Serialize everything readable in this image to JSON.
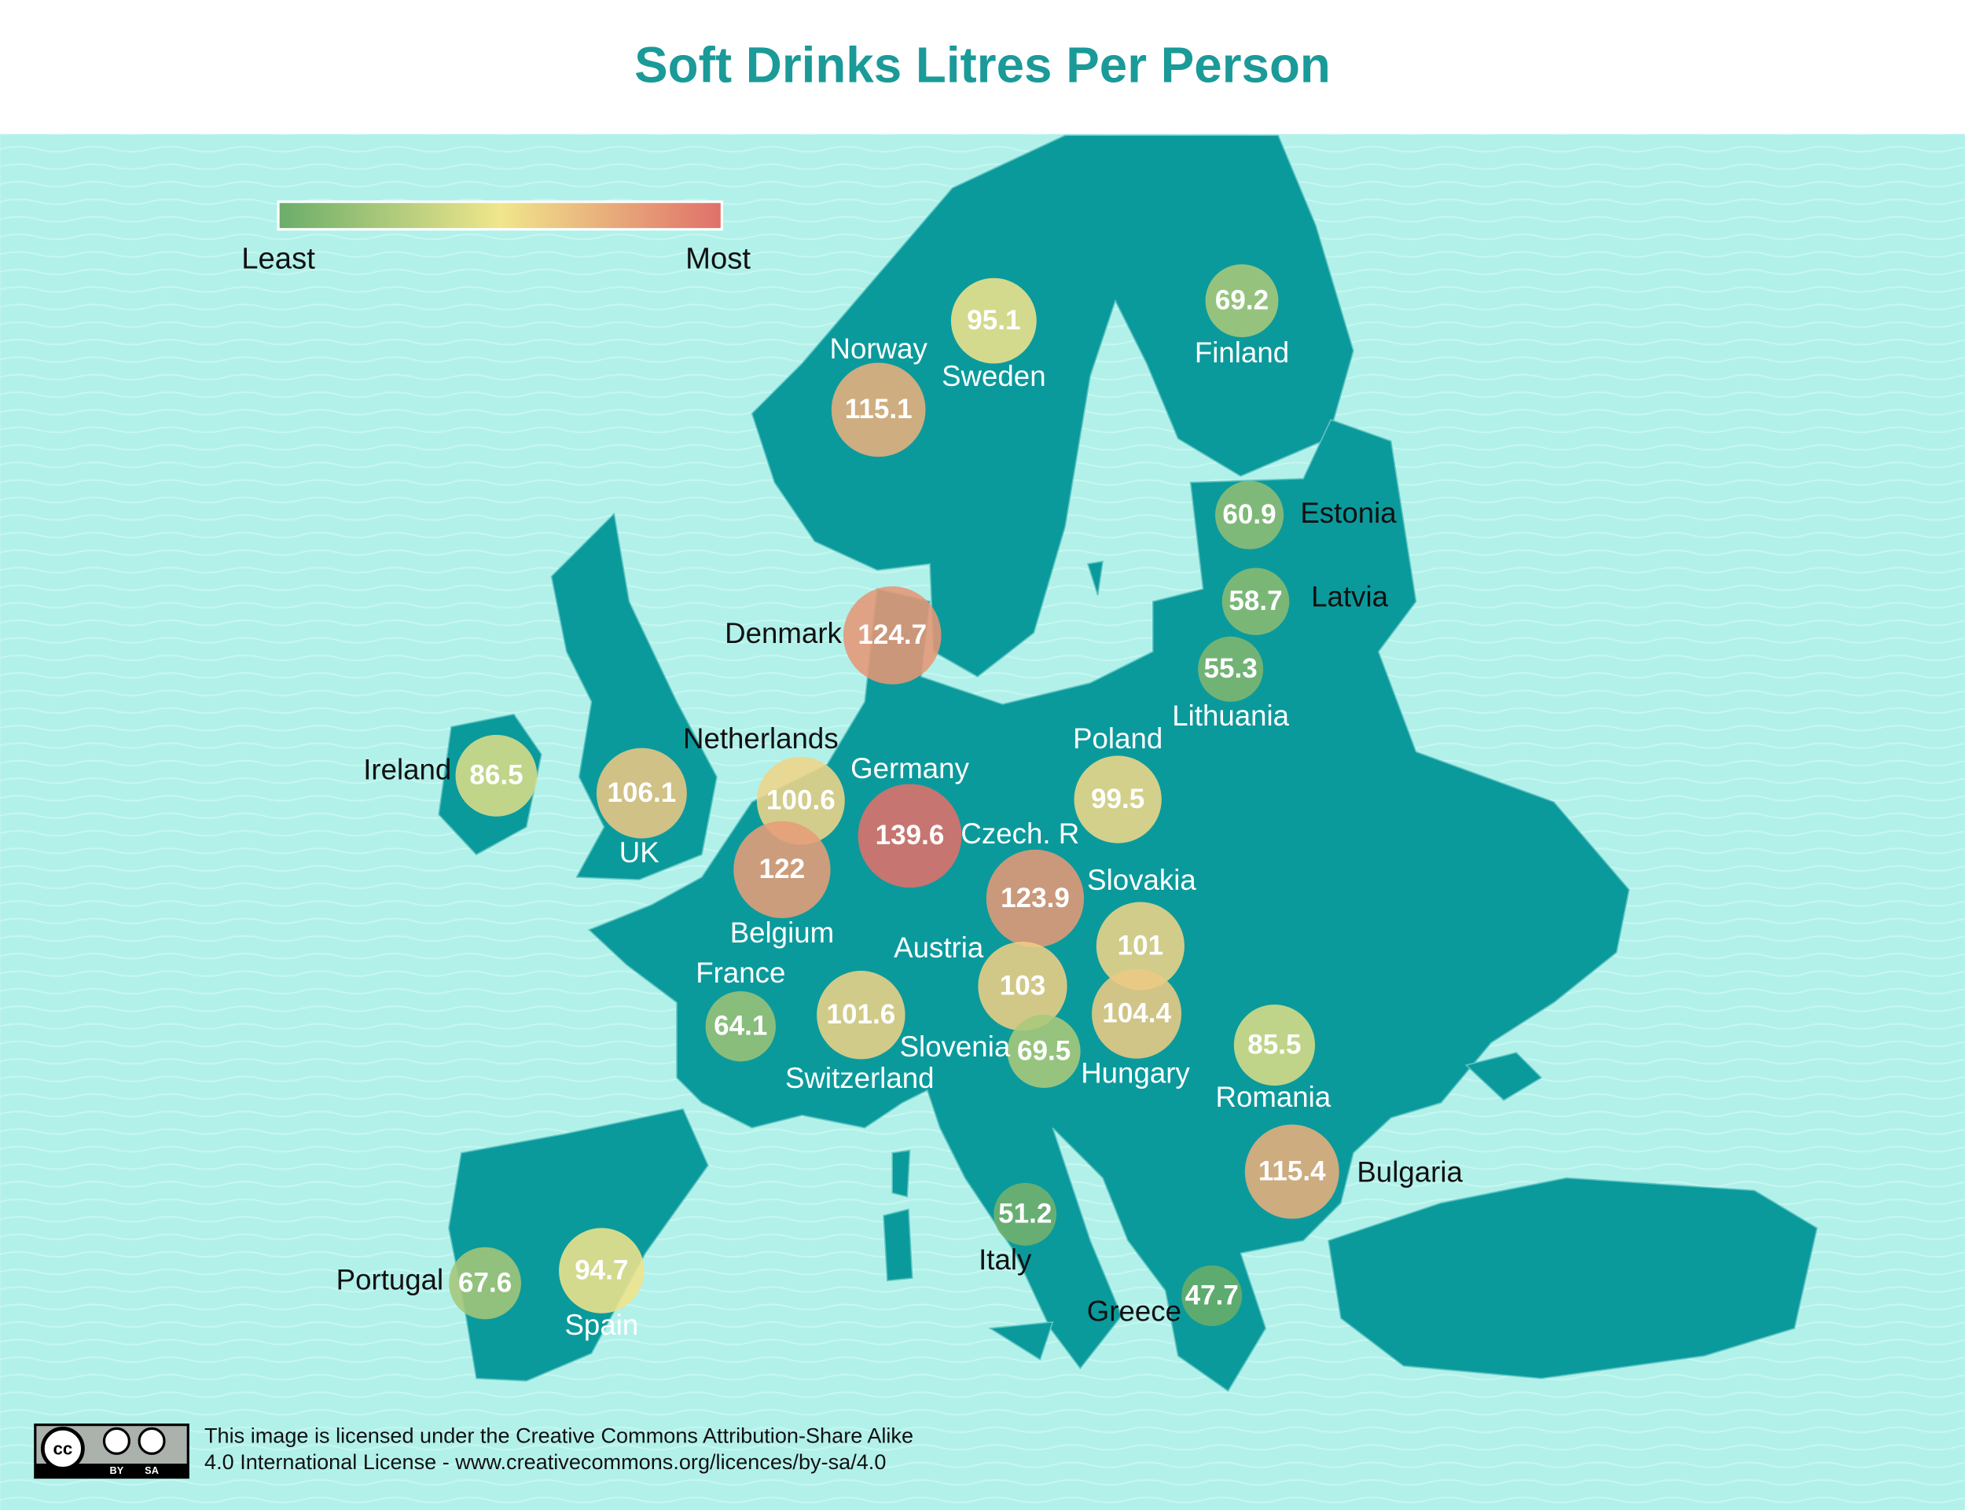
{
  "title": "Soft Drinks Litres Per Person",
  "legend": {
    "low": "Least",
    "high": "Most",
    "colors": [
      "#6aad6a",
      "#f0e68c",
      "#e0706a"
    ]
  },
  "countries": [
    {
      "name": "Norway",
      "value": 115.1
    },
    {
      "name": "Sweden",
      "value": 95.1
    },
    {
      "name": "Finland",
      "value": 69.2
    },
    {
      "name": "Estonia",
      "value": 60.9
    },
    {
      "name": "Latvia",
      "value": 58.7
    },
    {
      "name": "Lithuania",
      "value": 55.3
    },
    {
      "name": "Denmark",
      "value": 124.7
    },
    {
      "name": "Ireland",
      "value": 86.5
    },
    {
      "name": "UK",
      "value": 106.1
    },
    {
      "name": "Netherlands",
      "value": 100.6
    },
    {
      "name": "Germany",
      "value": 139.6
    },
    {
      "name": "Belgium",
      "value": 122
    },
    {
      "name": "Poland",
      "value": 99.5
    },
    {
      "name": "Czech. R",
      "value": 123.9
    },
    {
      "name": "Slovakia",
      "value": 101
    },
    {
      "name": "Austria",
      "value": 103
    },
    {
      "name": "Hungary",
      "value": 104.4
    },
    {
      "name": "Slovenia",
      "value": 69.5
    },
    {
      "name": "Switzerland",
      "value": 101.6
    },
    {
      "name": "France",
      "value": 64.1
    },
    {
      "name": "Romania",
      "value": 85.5
    },
    {
      "name": "Bulgaria",
      "value": 115.4
    },
    {
      "name": "Italy",
      "value": 51.2
    },
    {
      "name": "Greece",
      "value": 47.7
    },
    {
      "name": "Portugal",
      "value": 67.6
    },
    {
      "name": "Spain",
      "value": 94.7
    }
  ],
  "license": {
    "badge": {
      "cc": "cc",
      "by": "BY",
      "sa": "SA"
    },
    "line1": "This image is licensed under the Creative Commons Attribution-Share Alike",
    "line2": "4.0 International License - www.creativecommons.org/licences/by-sa/4.0"
  }
}
